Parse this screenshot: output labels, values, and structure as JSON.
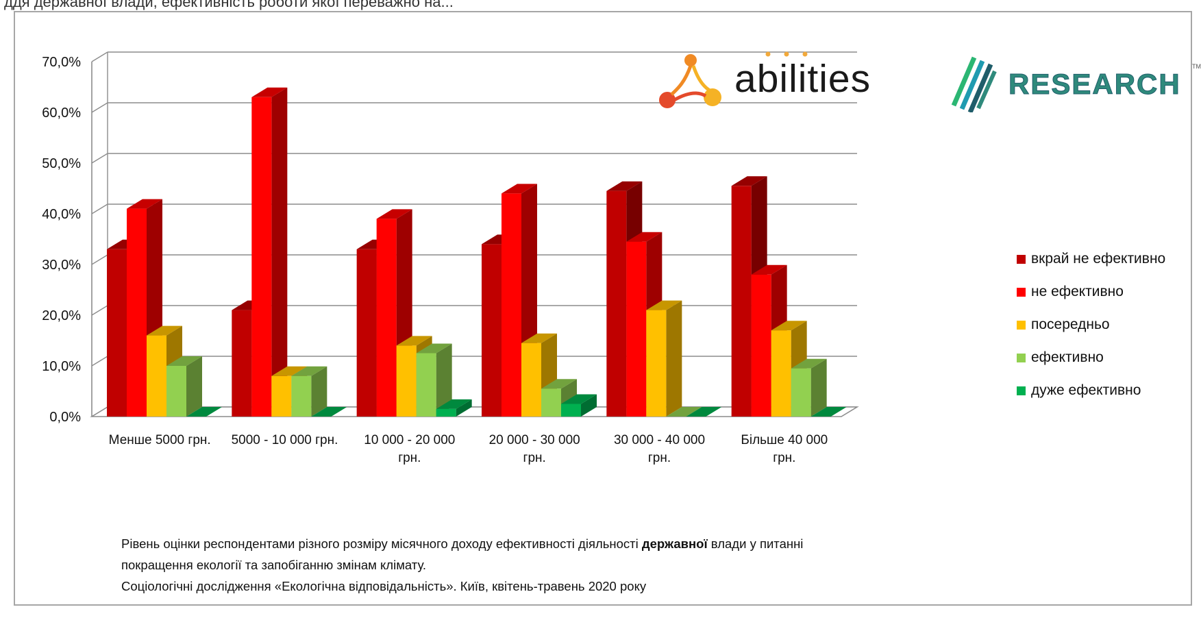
{
  "top_fragment": "ддя державної влади, ефективність роботи якої переважно на...",
  "logos": {
    "abilities": "abilities",
    "research": "RESEARCH",
    "tm": "TM"
  },
  "caption": {
    "line1_before": "Рівень оцінки респондентами різного розміру місячного доходу ефективності діяльності ",
    "line1_bold": "державної",
    "line1_after": " влади у питанні",
    "line2": "покращення екології та запобіганню змінам клімату.",
    "line3": "Соціологічні дослідження «Екологічна відповідальність». Київ, квітень-травень 2020 року"
  },
  "chart_data": {
    "type": "bar",
    "title": "",
    "xlabel": "",
    "ylabel": "",
    "ylim": [
      0,
      0.7
    ],
    "yticks": [
      "0,0%",
      "10,0%",
      "20,0%",
      "30,0%",
      "40,0%",
      "50,0%",
      "60,0%",
      "70,0%"
    ],
    "grid": true,
    "legend_position": "right",
    "three_d": true,
    "categories": [
      [
        "Менше 5000 грн."
      ],
      [
        "5000 - 10 000 грн."
      ],
      [
        "10 000 - 20 000",
        "грн."
      ],
      [
        "20 000 - 30 000",
        "грн."
      ],
      [
        "30 000 - 40 000",
        "грн."
      ],
      [
        "Більше 40 000",
        "грн."
      ]
    ],
    "series": [
      {
        "name": "вкрай не ефективно",
        "color": "#c00000",
        "values": [
          0.33,
          0.21,
          0.33,
          0.34,
          0.445,
          0.455
        ]
      },
      {
        "name": "не ефективно",
        "color": "#ff0000",
        "values": [
          0.41,
          0.63,
          0.39,
          0.44,
          0.345,
          0.28
        ]
      },
      {
        "name": "посередньо",
        "color": "#ffc000",
        "values": [
          0.16,
          0.08,
          0.14,
          0.145,
          0.21,
          0.17
        ]
      },
      {
        "name": "ефективно",
        "color": "#92d050",
        "values": [
          0.1,
          0.08,
          0.125,
          0.055,
          0.0,
          0.095
        ]
      },
      {
        "name": "дуже ефективно",
        "color": "#00b050",
        "values": [
          0.0,
          0.0,
          0.015,
          0.025,
          0.0,
          0.0
        ]
      }
    ]
  }
}
